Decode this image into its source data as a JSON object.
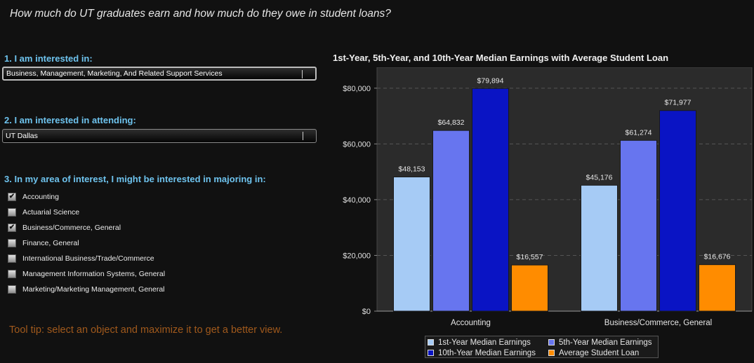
{
  "page": {
    "title": "How much do UT graduates earn and how much do they owe in student loans?",
    "tooltip": "Tool tip: select an object and maximize it to get a better view."
  },
  "filters": {
    "interest": {
      "heading": "1. I am interested in:",
      "selected": "Business, Management, Marketing, And Related Support Services"
    },
    "attending": {
      "heading": "2. I am interested in attending:",
      "selected": "UT Dallas"
    },
    "majors": {
      "heading": "3. In my area of interest, I might be interested in majoring in:",
      "items": [
        {
          "label": "Accounting",
          "checked": true
        },
        {
          "label": "Actuarial Science",
          "checked": false
        },
        {
          "label": "Business/Commerce, General",
          "checked": true
        },
        {
          "label": "Finance, General",
          "checked": false
        },
        {
          "label": "International Business/Trade/Commerce",
          "checked": false
        },
        {
          "label": "Management Information Systems, General",
          "checked": false
        },
        {
          "label": "Marketing/Marketing Management, General",
          "checked": false
        }
      ]
    }
  },
  "chart_data": {
    "type": "bar",
    "title": "1st-Year, 5th-Year, and 10th-Year Median Earnings with Average Student Loan",
    "categories": [
      "Accounting",
      "Business/Commerce, General"
    ],
    "series": [
      {
        "name": "1st-Year Median Earnings",
        "values": [
          48153,
          45176
        ],
        "labels": [
          "$48,153",
          "$45,176"
        ],
        "color": "#a6cbf5"
      },
      {
        "name": "5th-Year Median Earnings",
        "values": [
          64832,
          61274
        ],
        "labels": [
          "$64,832",
          "$61,274"
        ],
        "color": "#6775ef"
      },
      {
        "name": "10th-Year Median Earnings",
        "values": [
          79894,
          71977
        ],
        "labels": [
          "$79,894",
          "$71,977"
        ],
        "color": "#0a14c4"
      },
      {
        "name": "Average Student Loan",
        "values": [
          16557,
          16676
        ],
        "labels": [
          "$16,557",
          "$16,676"
        ],
        "color": "#ff8c00"
      }
    ],
    "y_ticks": [
      0,
      20000,
      40000,
      60000,
      80000
    ],
    "y_tick_labels": [
      "$0",
      "$20,000",
      "$40,000",
      "$60,000",
      "$80,000"
    ],
    "ylim": [
      0,
      80000
    ],
    "grid": true,
    "legend_position": "bottom-center"
  }
}
